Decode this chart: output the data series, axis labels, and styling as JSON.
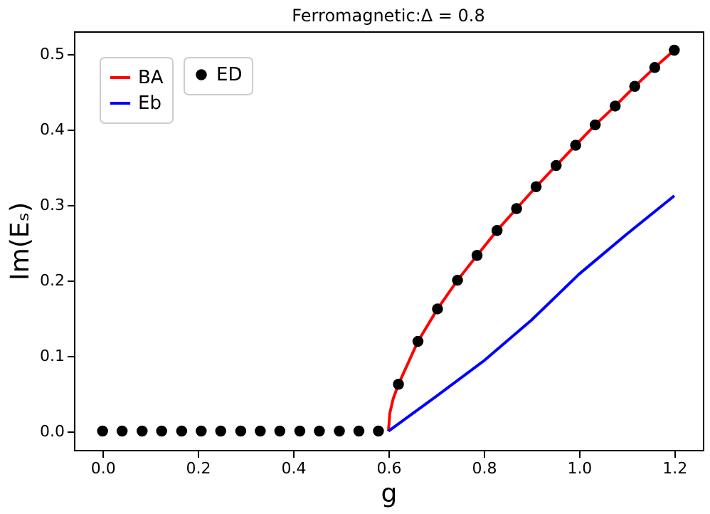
{
  "chart_data": {
    "type": "line",
    "title": "Ferromagnetic:Δ = 0.8",
    "xlabel": "g",
    "ylabel": "Im(Eₛ)",
    "xlim": [
      -0.06,
      1.26
    ],
    "xticks": [
      {
        "value": 0,
        "label": "0.0"
      },
      0.2,
      0.4,
      0.6,
      0.8,
      {
        "value": 1,
        "label": "1.0"
      },
      1.2
    ],
    "ylim": [
      -0.025,
      0.53
    ],
    "yticks": [
      {
        "value": 0,
        "label": "0.0"
      },
      0.1,
      0.2,
      0.3,
      0.4,
      0.5
    ],
    "grid": false,
    "legend": "top left",
    "series": [
      {
        "name": "BA",
        "color": "#ff0000",
        "line_style": "solid",
        "x": [
          0.6,
          0.603,
          0.61,
          0.621,
          0.662,
          0.703,
          0.745,
          0.786,
          0.828,
          0.869,
          0.91,
          0.952,
          0.993,
          1.034,
          1.076,
          1.117,
          1.159,
          1.2
        ],
        "values": [
          0.0,
          0.024,
          0.043,
          0.062,
          0.119,
          0.162,
          0.2,
          0.233,
          0.266,
          0.295,
          0.324,
          0.352,
          0.379,
          0.406,
          0.431,
          0.457,
          0.482,
          0.505
        ]
      },
      {
        "name": "Eb",
        "color": "#0000ff",
        "line_style": "solid",
        "x": [
          0.6,
          0.7,
          0.8,
          0.9,
          1.0,
          1.1,
          1.2
        ],
        "values": [
          0.0,
          0.046,
          0.093,
          0.147,
          0.208,
          0.261,
          0.312
        ]
      },
      {
        "name": "ED",
        "type": "scatter",
        "color": "#000000",
        "marker": "circle",
        "x": [
          0.0,
          0.041,
          0.083,
          0.124,
          0.166,
          0.207,
          0.248,
          0.29,
          0.331,
          0.372,
          0.414,
          0.455,
          0.497,
          0.538,
          0.579,
          0.621,
          0.662,
          0.703,
          0.745,
          0.786,
          0.828,
          0.869,
          0.91,
          0.952,
          0.993,
          1.034,
          1.076,
          1.117,
          1.159,
          1.2
        ],
        "values": [
          0,
          0,
          0,
          0,
          0,
          0,
          0,
          0,
          0,
          0,
          0,
          0,
          0,
          0,
          0,
          0.062,
          0.119,
          0.162,
          0.2,
          0.233,
          0.266,
          0.295,
          0.324,
          0.352,
          0.379,
          0.406,
          0.431,
          0.457,
          0.482,
          0.505
        ]
      }
    ]
  }
}
